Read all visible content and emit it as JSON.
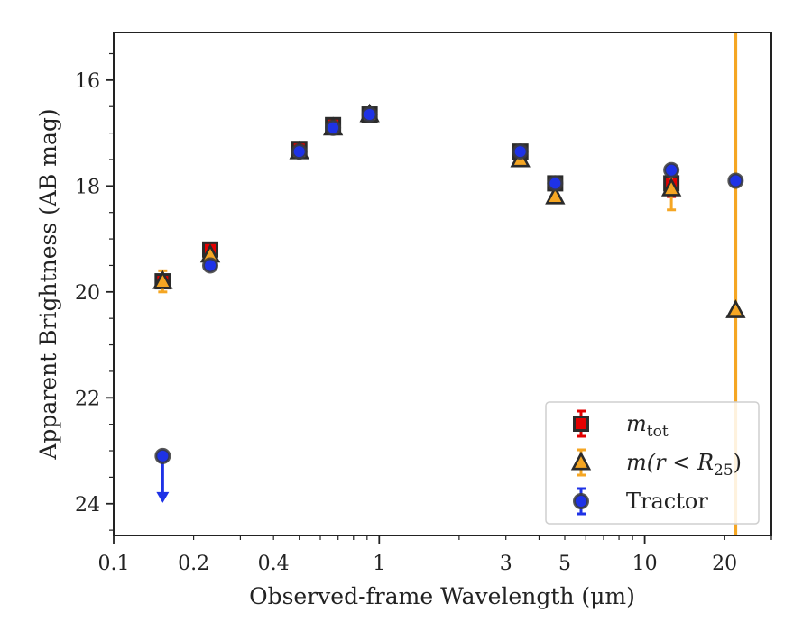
{
  "chart_data": {
    "type": "scatter",
    "xlabel": "Observed-frame Wavelength (μm)",
    "ylabel": "Apparent Brightness (AB mag)",
    "xscale": "log",
    "xlim": [
      0.1,
      30
    ],
    "ylim": [
      24.6,
      15.1
    ],
    "y_inverted": true,
    "xticks": [
      0.1,
      0.2,
      0.4,
      1,
      3,
      5,
      10,
      20
    ],
    "xtick_labels": [
      "0.1",
      "0.2",
      "0.4",
      "1",
      "3",
      "5",
      "10",
      "20"
    ],
    "yticks": [
      16,
      18,
      20,
      22,
      24
    ],
    "ytick_labels": [
      "16",
      "18",
      "20",
      "22",
      "24"
    ],
    "legend_position": "lower-right",
    "grid": false,
    "vertical_line": {
      "x": 22.0,
      "color": "#f5a623"
    },
    "series": [
      {
        "legend": "m_tot",
        "legend_main": "m",
        "legend_sub": "tot",
        "marker": "square",
        "color": "#e30000",
        "points": [
          {
            "x": 0.153,
            "y": 19.8
          },
          {
            "x": 0.231,
            "y": 19.2
          },
          {
            "x": 0.5,
            "y": 17.3
          },
          {
            "x": 0.67,
            "y": 16.85
          },
          {
            "x": 0.92,
            "y": 16.65
          },
          {
            "x": 3.4,
            "y": 17.35
          },
          {
            "x": 4.6,
            "y": 17.95
          },
          {
            "x": 12.6,
            "y": 17.95,
            "err": 0.25
          }
        ]
      },
      {
        "legend": "m(r < R_25)",
        "legend_main": "m(r < R",
        "legend_sub": "25",
        "legend_tail": ")",
        "marker": "triangle",
        "color": "#f5a623",
        "points": [
          {
            "x": 0.153,
            "y": 19.8,
            "err": 0.2
          },
          {
            "x": 0.231,
            "y": 19.3
          },
          {
            "x": 0.5,
            "y": 17.35
          },
          {
            "x": 0.67,
            "y": 16.9
          },
          {
            "x": 0.92,
            "y": 16.65
          },
          {
            "x": 3.4,
            "y": 17.5
          },
          {
            "x": 4.6,
            "y": 18.2
          },
          {
            "x": 12.6,
            "y": 18.05,
            "err": 0.4
          },
          {
            "x": 22.0,
            "y": 20.35
          }
        ]
      },
      {
        "legend": "Tractor",
        "marker": "circle",
        "color": "#1e32e6",
        "points": [
          {
            "x": 0.153,
            "y": 23.1,
            "upper_limit": true
          },
          {
            "x": 0.231,
            "y": 19.5
          },
          {
            "x": 0.5,
            "y": 17.35
          },
          {
            "x": 0.67,
            "y": 16.9
          },
          {
            "x": 0.92,
            "y": 16.65
          },
          {
            "x": 3.4,
            "y": 17.35
          },
          {
            "x": 4.6,
            "y": 17.95
          },
          {
            "x": 12.6,
            "y": 17.7
          },
          {
            "x": 22.0,
            "y": 17.9
          }
        ]
      }
    ]
  }
}
